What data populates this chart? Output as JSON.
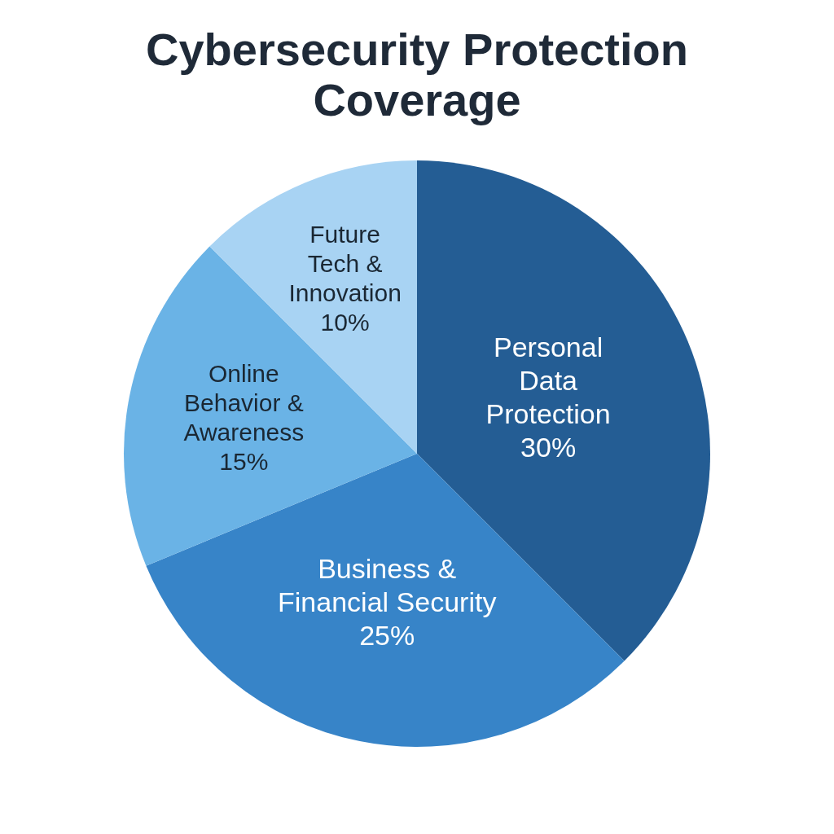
{
  "chart_data": {
    "type": "pie",
    "title": "Cybersecurity Protection Coverage",
    "categories": [
      "Personal Data Protection",
      "Business & Financial Security",
      "Online Behavior & Awareness",
      "Future Tech & Innovation"
    ],
    "values": [
      30,
      25,
      15,
      10
    ],
    "colors": [
      "#245d94",
      "#3784c8",
      "#6ab3e6",
      "#a8d3f3"
    ],
    "value_labels": [
      "30%",
      "25%",
      "15%",
      "10%"
    ]
  }
}
